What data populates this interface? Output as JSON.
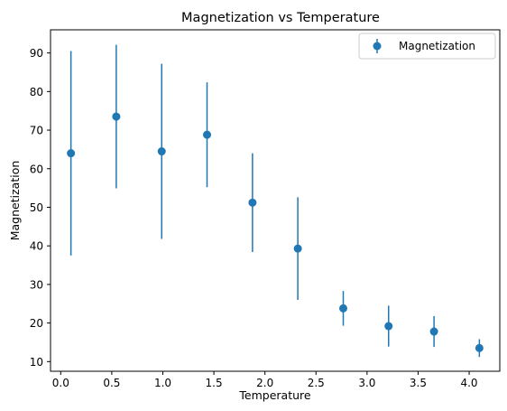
{
  "chart_data": {
    "type": "scatter",
    "title": "Magnetization vs Temperature",
    "xlabel": "Temperature",
    "ylabel": "Magnetization",
    "xlim": [
      -0.1,
      4.3
    ],
    "ylim": [
      7.5,
      96
    ],
    "xticks": [
      0.0,
      0.5,
      1.0,
      1.5,
      2.0,
      2.5,
      3.0,
      3.5,
      4.0
    ],
    "xtick_labels": [
      "0.0",
      "0.5",
      "1.0",
      "1.5",
      "2.0",
      "2.5",
      "3.0",
      "3.5",
      "4.0"
    ],
    "yticks": [
      10,
      20,
      30,
      40,
      50,
      60,
      70,
      80,
      90
    ],
    "ytick_labels": [
      "10",
      "20",
      "30",
      "40",
      "50",
      "60",
      "70",
      "80",
      "90"
    ],
    "grid": false,
    "legend_position": "top-right",
    "series": [
      {
        "name": "Magnetization",
        "color": "#1f77b4",
        "x": [
          0.1,
          0.544,
          0.989,
          1.433,
          1.878,
          2.322,
          2.767,
          3.211,
          3.656,
          4.1
        ],
        "y": [
          64.0,
          73.5,
          64.5,
          68.8,
          51.2,
          39.3,
          23.8,
          19.2,
          17.8,
          13.5
        ],
        "yerr": [
          26.5,
          18.6,
          22.7,
          13.6,
          12.8,
          13.3,
          4.5,
          5.3,
          4.0,
          2.3
        ]
      }
    ]
  }
}
